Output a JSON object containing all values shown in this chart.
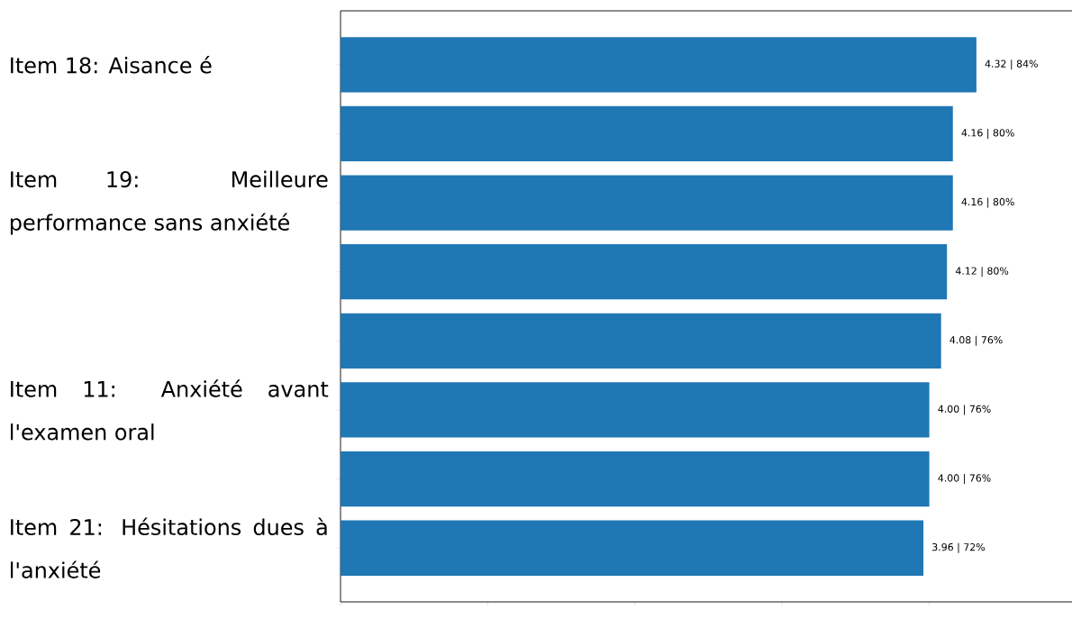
{
  "chart_data": {
    "type": "bar",
    "orientation": "horizontal",
    "categories": [
      "Item 18: Aisance é",
      null,
      "Item 19: Meilleure performance sans anxiété",
      null,
      null,
      "Item 11: Anxiété avant l'examen oral",
      null,
      "Item 21: Hésitations dues à l'anxiété"
    ],
    "values": [
      4.32,
      4.16,
      4.16,
      4.12,
      4.08,
      4.0,
      4.0,
      3.96
    ],
    "value_labels": [
      "4.32 | 84%",
      "4.16 | 80%",
      "4.16 | 80%",
      "4.12 | 80%",
      "4.08 | 76%",
      "4.00 | 76%",
      "4.00 | 76%",
      "3.96 | 72%"
    ],
    "color": "#1f77b4",
    "xlim": [
      0,
      5
    ],
    "xticks": [
      {
        "value": 0,
        "label": null
      },
      {
        "value": 1,
        "label": null
      },
      {
        "value": 2,
        "label": null
      },
      {
        "value": 3,
        "label": null
      },
      {
        "value": 4,
        "label": null
      },
      {
        "value": 5,
        "label": null
      }
    ],
    "tick_labels": "y"
  }
}
